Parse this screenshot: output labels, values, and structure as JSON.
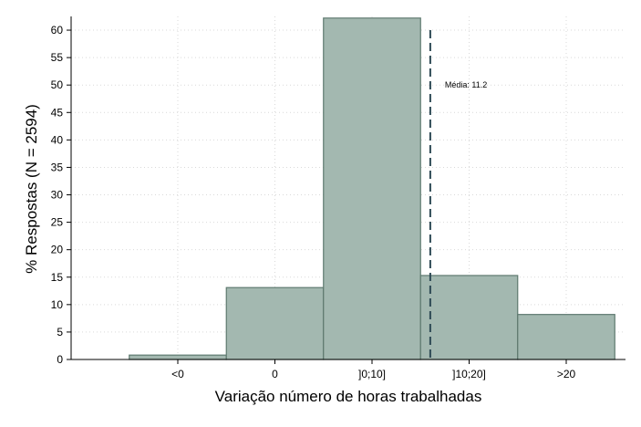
{
  "chart_data": {
    "type": "bar",
    "categories": [
      "<0",
      "0",
      "]0;10]",
      "]10;20]",
      ">20"
    ],
    "values": [
      0.8,
      13.1,
      62.2,
      15.3,
      8.2
    ],
    "xlabel": "Variação número de horas trabalhadas",
    "ylabel": "% Respostas (N = 2594)",
    "ylim": [
      0,
      62.5
    ],
    "yticks": [
      0,
      5,
      10,
      15,
      20,
      25,
      30,
      35,
      40,
      45,
      50,
      55,
      60
    ],
    "grid": true,
    "mean_line": {
      "label": "Média: 11.2",
      "position_category_index": 2.6,
      "top_value": 60
    },
    "colors": {
      "bar_fill": "#a3b8b0",
      "bar_stroke": "#5f7a70",
      "mean_line": "#2e4a55",
      "grid": "#d9d9d9"
    }
  }
}
